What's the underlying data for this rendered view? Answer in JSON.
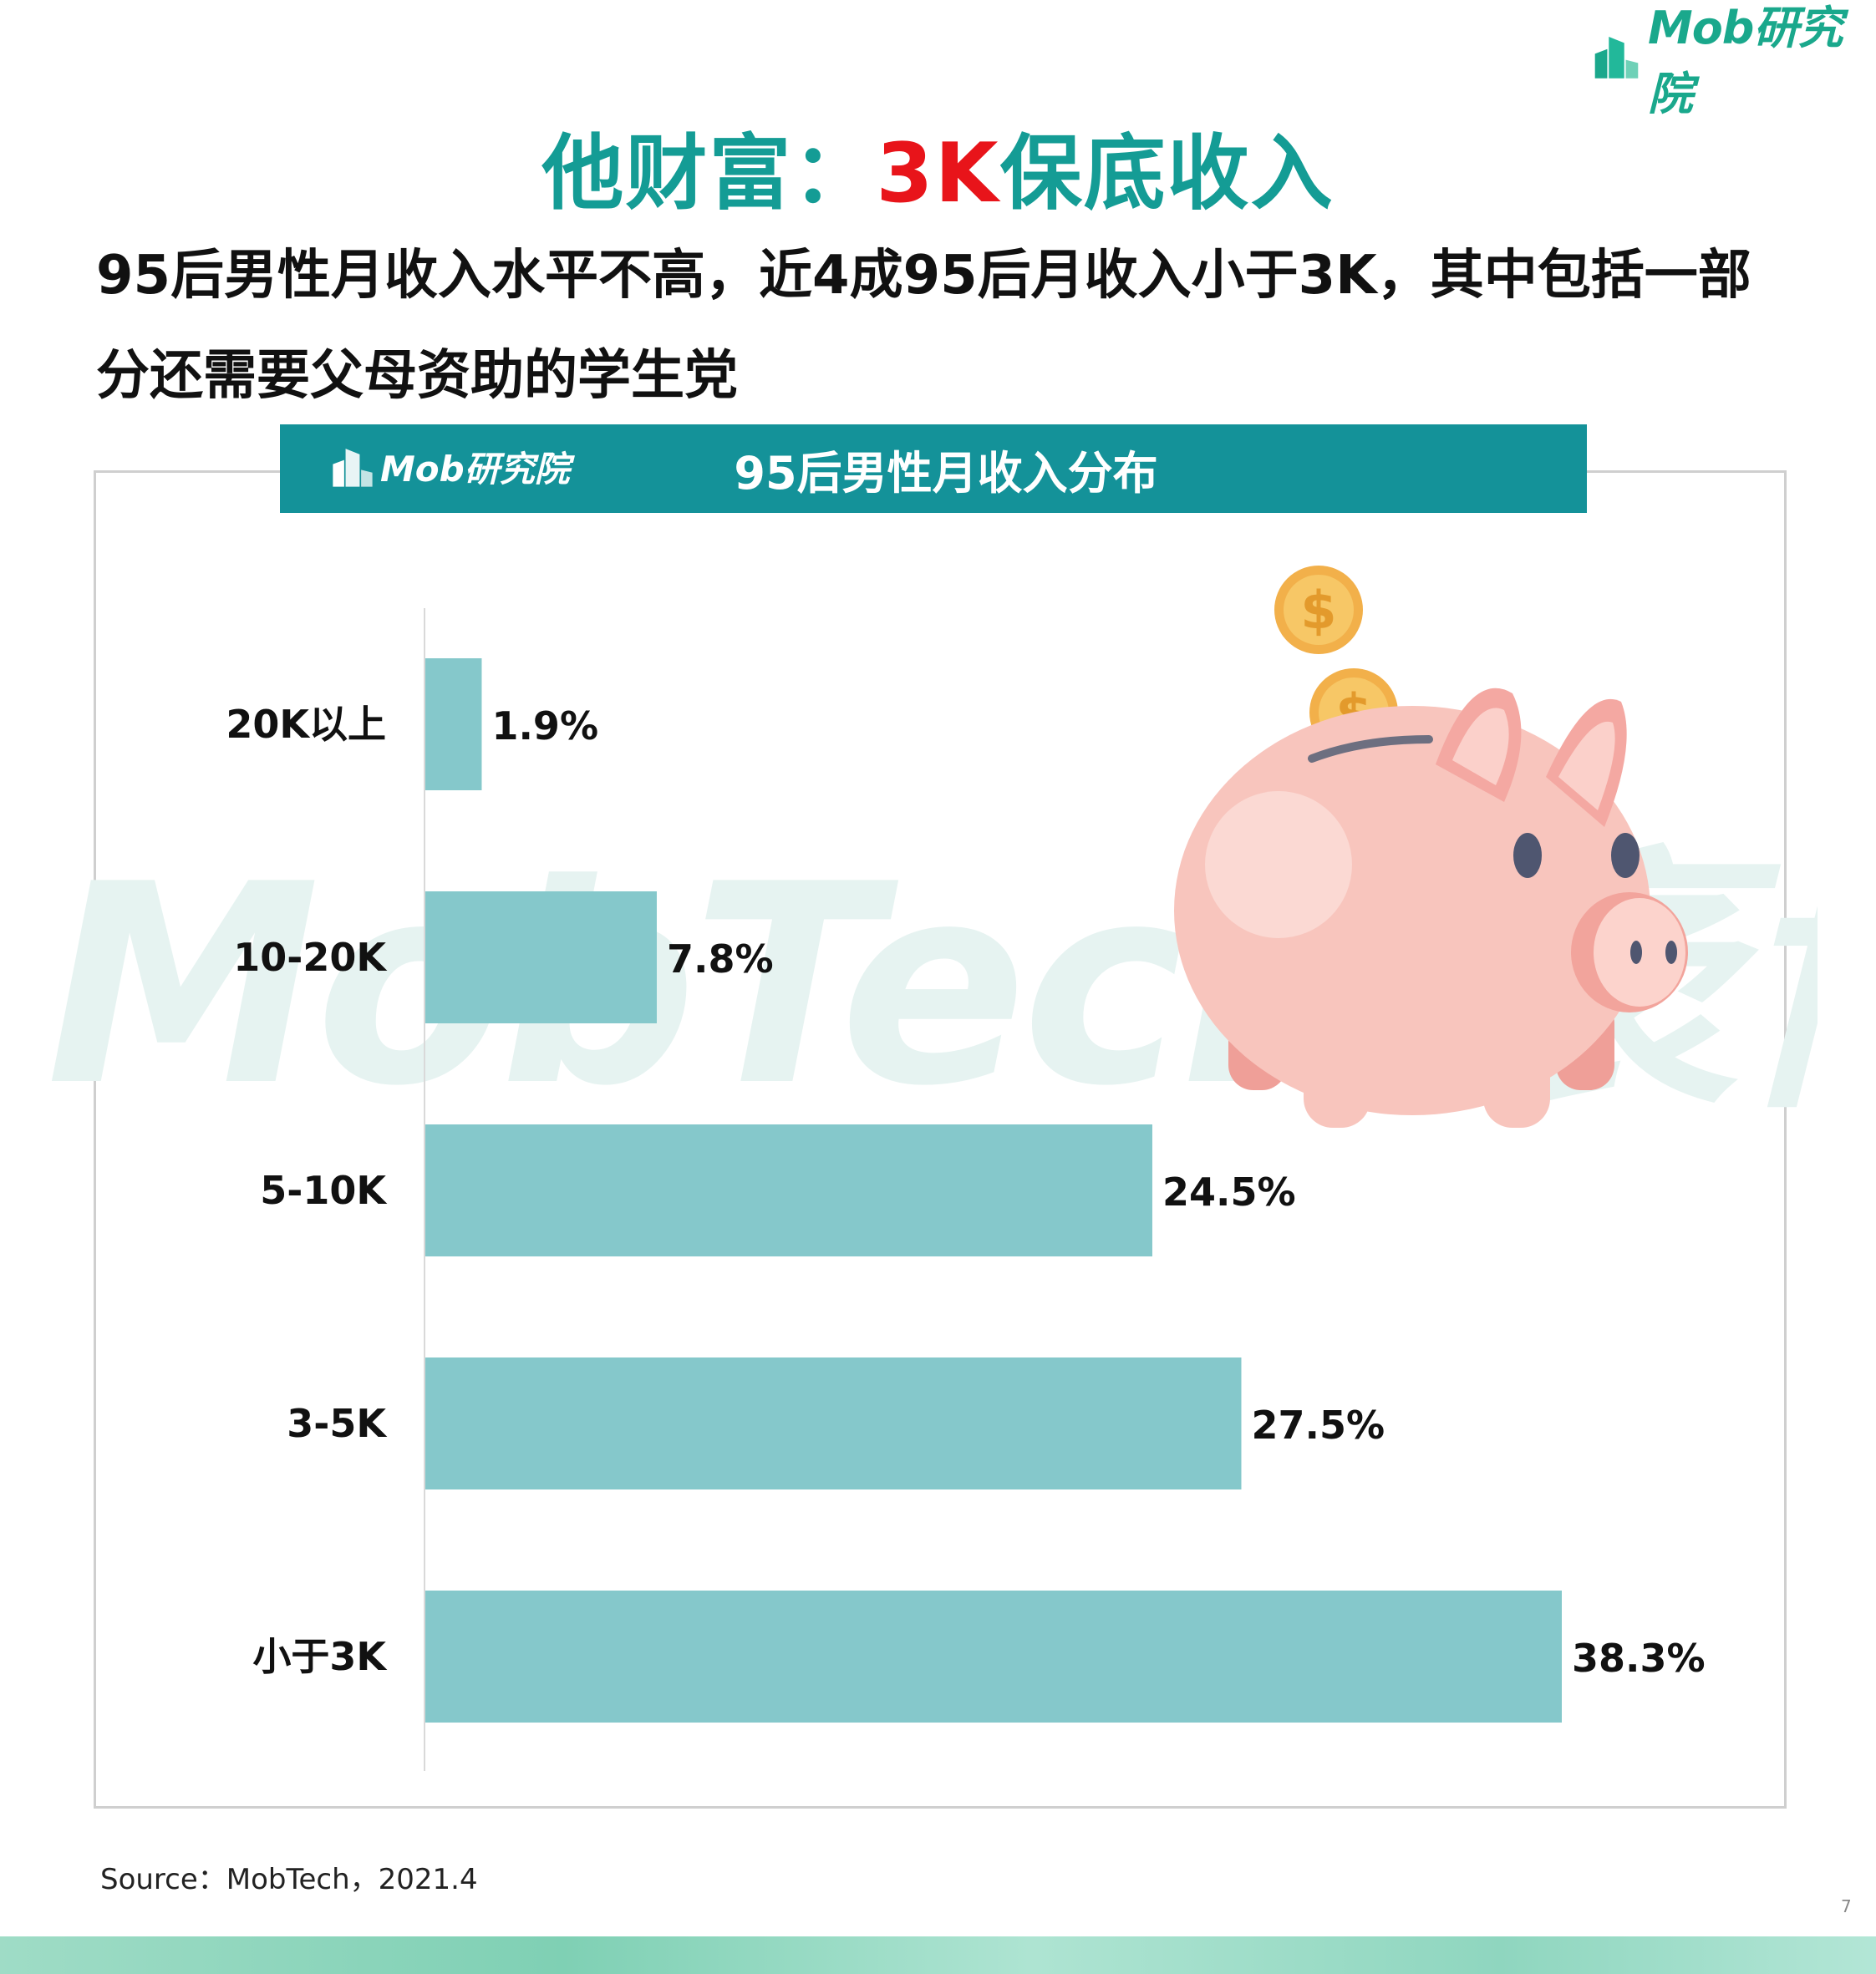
{
  "brand": {
    "name": "Mob研究院"
  },
  "title": {
    "part1": "他财富：",
    "highlight": "3K",
    "part2": "保底收入"
  },
  "subtitle": {
    "line1": "95后男性月收入水平不高，近4成95后月收入小于3K，其中包括一部",
    "line2": "分还需要父母资助的学生党"
  },
  "panel": {
    "logo": "Mob研究院",
    "title": "95后男性月收入分布"
  },
  "watermark": "MobTech 袤博",
  "chart_data": {
    "type": "bar",
    "orientation": "horizontal",
    "title": "95后男性月收入分布",
    "categories": [
      "20K以上",
      "10-20K",
      "5-10K",
      "3-5K",
      "小于3K"
    ],
    "values": [
      1.9,
      7.8,
      24.5,
      27.5,
      38.3
    ],
    "labels": [
      "1.9%",
      "7.8%",
      "24.5%",
      "27.5%",
      "38.3%"
    ],
    "unit": "%",
    "xlim": [
      0,
      38.3
    ],
    "bar_color": "#85c8cb",
    "grid": false,
    "legend": "none"
  },
  "source": "Source：MobTech，2021.4",
  "page_number": "7",
  "colors": {
    "title_teal": "#149c95",
    "title_red": "#e8141a",
    "header_bg": "#149299",
    "bar": "#85c8cb",
    "piggy": "#f8c5bd"
  }
}
